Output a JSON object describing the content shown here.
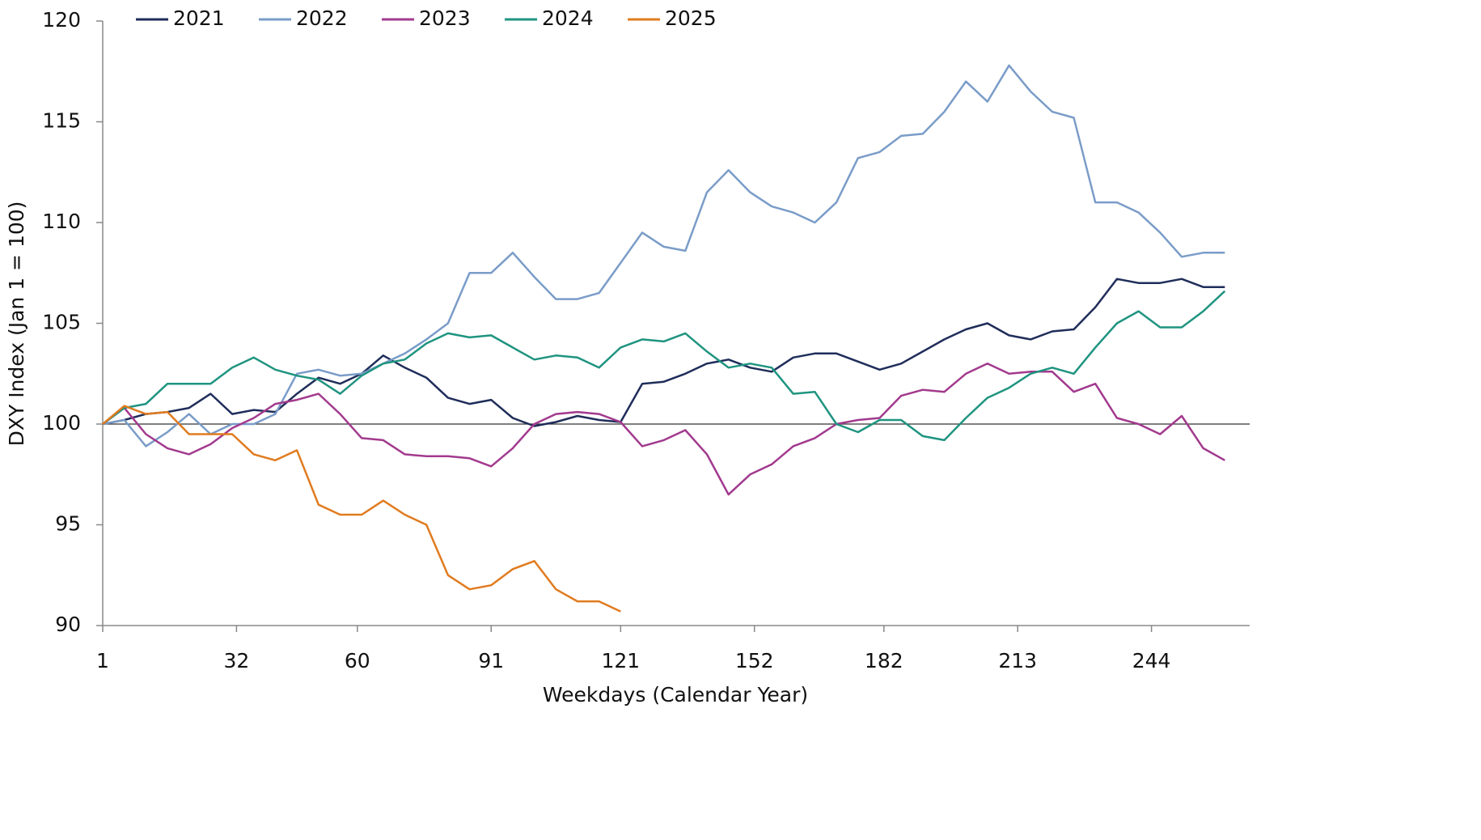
{
  "chart_data": {
    "type": "line",
    "x_label": "Weekdays (Calendar Year)",
    "y_label": "DXY Index (Jan 1 = 100)",
    "x": [
      1,
      6,
      11,
      16,
      21,
      26,
      31,
      36,
      41,
      46,
      51,
      56,
      61,
      66,
      71,
      76,
      81,
      86,
      91,
      96,
      101,
      106,
      111,
      116,
      121,
      126,
      131,
      136,
      141,
      146,
      151,
      156,
      161,
      166,
      171,
      176,
      181,
      186,
      191,
      196,
      201,
      206,
      211,
      216,
      221,
      226,
      231,
      236,
      241,
      246,
      251,
      256,
      261
    ],
    "series": [
      {
        "name": "2021",
        "color": "#1f2d5a",
        "values": [
          100,
          100.2,
          100.5,
          100.6,
          100.8,
          101.5,
          100.5,
          100.7,
          100.6,
          101.5,
          102.3,
          102,
          102.5,
          103.4,
          102.8,
          102.3,
          101.3,
          101,
          101.2,
          100.3,
          99.9,
          100.1,
          100.4,
          100.2,
          100.1,
          102,
          102.1,
          102.5,
          103,
          103.2,
          102.8,
          102.6,
          103.3,
          103.5,
          103.5,
          103.1,
          102.7,
          103,
          103.6,
          104.2,
          104.7,
          105,
          104.4,
          104.2,
          104.6,
          104.7,
          105.8,
          107.2,
          107,
          107,
          107.2,
          106.8,
          106.8
        ]
      },
      {
        "name": "2022",
        "color": "#7a9cc8",
        "values": [
          100,
          100.2,
          98.9,
          99.6,
          100.5,
          99.5,
          100,
          100,
          100.5,
          102.5,
          102.7,
          102.4,
          102.5,
          103,
          103.5,
          104.2,
          105,
          107.5,
          107.5,
          108.5,
          107.3,
          106.2,
          106.2,
          106.5,
          108,
          109.5,
          108.8,
          108.6,
          111.5,
          112.6,
          111.5,
          110.8,
          110.5,
          110,
          111,
          113.2,
          113.5,
          114.3,
          114.4,
          115.5,
          117,
          116,
          117.8,
          116.5,
          115.5,
          115.2,
          111,
          111,
          110.5,
          109.5,
          108.3,
          108.5,
          108.5
        ]
      },
      {
        "name": "2023",
        "color": "#a23a8e",
        "values": [
          100,
          100.8,
          99.5,
          98.8,
          98.5,
          99,
          99.8,
          100.3,
          101,
          101.2,
          101.5,
          100.5,
          99.3,
          99.2,
          98.5,
          98.4,
          98.4,
          98.3,
          97.9,
          98.8,
          100,
          100.5,
          100.6,
          100.5,
          100.1,
          98.9,
          99.2,
          99.7,
          98.5,
          96.5,
          97.5,
          98,
          98.9,
          99.3,
          100,
          100.2,
          100.3,
          101.4,
          101.7,
          101.6,
          102.5,
          103,
          102.5,
          102.6,
          102.6,
          101.6,
          102,
          100.3,
          100,
          99.5,
          100.4,
          98.8,
          98.2
        ]
      },
      {
        "name": "2024",
        "color": "#1f9480",
        "values": [
          100,
          100.8,
          101,
          102,
          102,
          102,
          102.8,
          103.3,
          102.7,
          102.4,
          102.2,
          101.5,
          102.4,
          103,
          103.2,
          104,
          104.5,
          104.3,
          104.4,
          103.8,
          103.2,
          103.4,
          103.3,
          102.8,
          103.8,
          104.2,
          104.1,
          104.5,
          103.6,
          102.8,
          103,
          102.8,
          101.5,
          101.6,
          100,
          99.6,
          100.2,
          100.2,
          99.4,
          99.2,
          100.3,
          101.3,
          101.8,
          102.5,
          102.8,
          102.5,
          103.8,
          105,
          105.6,
          104.8,
          104.8,
          105.6,
          106.6
        ]
      },
      {
        "name": "2025",
        "color": "#e07b1f",
        "values": [
          100,
          100.9,
          100.5,
          100.6,
          99.5,
          99.5,
          99.5,
          98.5,
          98.2,
          98.7,
          96,
          95.5,
          95.5,
          96.2,
          95.5,
          95,
          92.5,
          91.8,
          92,
          92.8,
          93.2,
          91.8,
          91.2,
          91.2,
          90.7,
          null,
          null,
          null,
          null,
          null,
          null,
          null,
          null,
          null,
          null,
          null,
          null,
          null,
          null,
          null,
          null,
          null,
          null,
          null,
          null,
          null,
          null,
          null,
          null,
          null,
          null,
          null,
          null
        ]
      }
    ],
    "xlim": [
      1,
      266
    ],
    "xticks": [
      1,
      32,
      60,
      91,
      121,
      152,
      182,
      213,
      244
    ],
    "ylim": [
      90,
      120
    ],
    "yticks": [
      90,
      95,
      100,
      105,
      110,
      115,
      120
    ],
    "reference_line": 100,
    "legend": "top"
  }
}
